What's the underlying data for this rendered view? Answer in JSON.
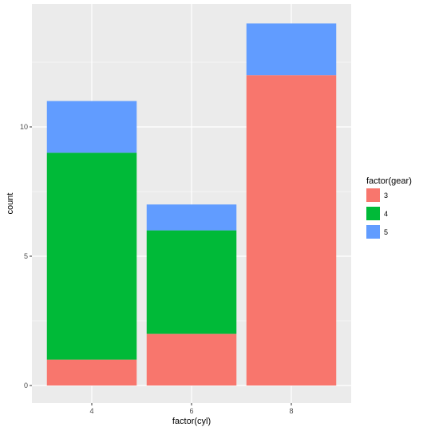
{
  "chart_data": {
    "type": "bar",
    "stacked": true,
    "categories": [
      "4",
      "6",
      "8"
    ],
    "series": [
      {
        "name": "3",
        "color": "#F8766D",
        "values": [
          1,
          2,
          12
        ]
      },
      {
        "name": "4",
        "color": "#00BA38",
        "values": [
          8,
          4,
          0
        ]
      },
      {
        "name": "5",
        "color": "#619CFF",
        "values": [
          2,
          1,
          2
        ]
      }
    ],
    "totals": [
      11,
      7,
      14
    ],
    "title": "",
    "xlabel": "factor(cyl)",
    "ylabel": "count",
    "ylim": [
      0,
      14.7
    ],
    "yticks": [
      0,
      5,
      10
    ],
    "grid": true,
    "legend": {
      "title": "factor(gear)",
      "position": "right"
    },
    "panel_color": "#EBEBEB",
    "grid_color": "#FFFFFF"
  }
}
